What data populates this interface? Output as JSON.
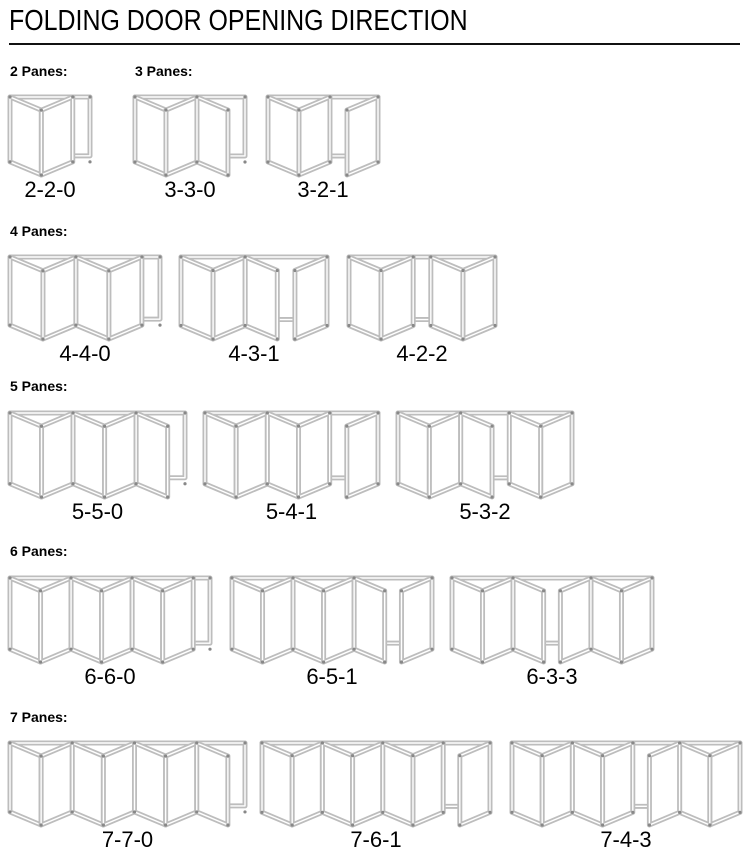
{
  "title": "FOLDING DOOR OPENING DIRECTION",
  "colors": {
    "frame": "#bdbdbd",
    "text": "#000000",
    "rule": "#111111"
  },
  "sections": [
    {
      "label": "2 Panes:",
      "configs": [
        {
          "code": "2-2-0"
        }
      ]
    },
    {
      "label": "3 Panes:",
      "configs": [
        {
          "code": "3-3-0"
        },
        {
          "code": "3-2-1"
        }
      ]
    },
    {
      "label": "4 Panes:",
      "configs": [
        {
          "code": "4-4-0"
        },
        {
          "code": "4-3-1"
        },
        {
          "code": "4-2-2"
        }
      ]
    },
    {
      "label": "5 Panes:",
      "configs": [
        {
          "code": "5-5-0"
        },
        {
          "code": "5-4-1"
        },
        {
          "code": "5-3-2"
        }
      ]
    },
    {
      "label": "6 Panes:",
      "configs": [
        {
          "code": "6-6-0"
        },
        {
          "code": "6-5-1"
        },
        {
          "code": "6-3-3"
        }
      ]
    },
    {
      "label": "7 Panes:",
      "configs": [
        {
          "code": "7-7-0"
        },
        {
          "code": "7-6-1"
        },
        {
          "code": "7-4-3"
        }
      ]
    }
  ]
}
